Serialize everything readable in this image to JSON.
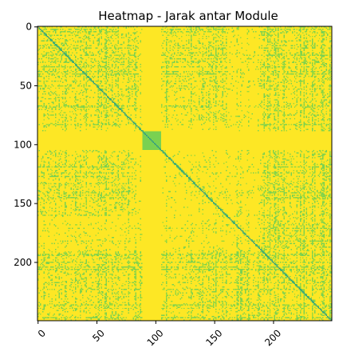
{
  "chart_data": {
    "type": "heatmap",
    "title": "Heatmap - Jarak antar Module",
    "xlabel": "",
    "ylabel": "",
    "matrix_size": 250,
    "xlim": [
      0,
      249
    ],
    "ylim": [
      249,
      0
    ],
    "x_ticks": [
      0,
      50,
      100,
      150,
      200
    ],
    "y_ticks": [
      0,
      50,
      100,
      150,
      200
    ],
    "x_tick_labels": [
      "0",
      "50",
      "100",
      "150",
      "200"
    ],
    "y_tick_labels": [
      "0",
      "50",
      "100",
      "150",
      "200"
    ],
    "x_tick_rotation_deg": -45,
    "colormap": "viridis",
    "background_value_color": "#fde725",
    "diagonal_value_color": "#21918c",
    "light_value_color": "#a0da39",
    "mid_value_color": "#7ad151",
    "block_regions": [
      {
        "range": [
          89,
          104
        ],
        "description": "uniform band with darker green square on diagonal"
      }
    ],
    "dense_regions": [
      {
        "rows": [
          5,
          70
        ],
        "cols": [
          0,
          85
        ]
      },
      {
        "rows": [
          105,
          160
        ],
        "cols": [
          0,
          80
        ]
      },
      {
        "rows": [
          190,
          249
        ],
        "cols": [
          0,
          249
        ]
      },
      {
        "rows": [
          200,
          249
        ],
        "cols": [
          200,
          249
        ]
      }
    ],
    "grid": false,
    "legend": "none"
  }
}
